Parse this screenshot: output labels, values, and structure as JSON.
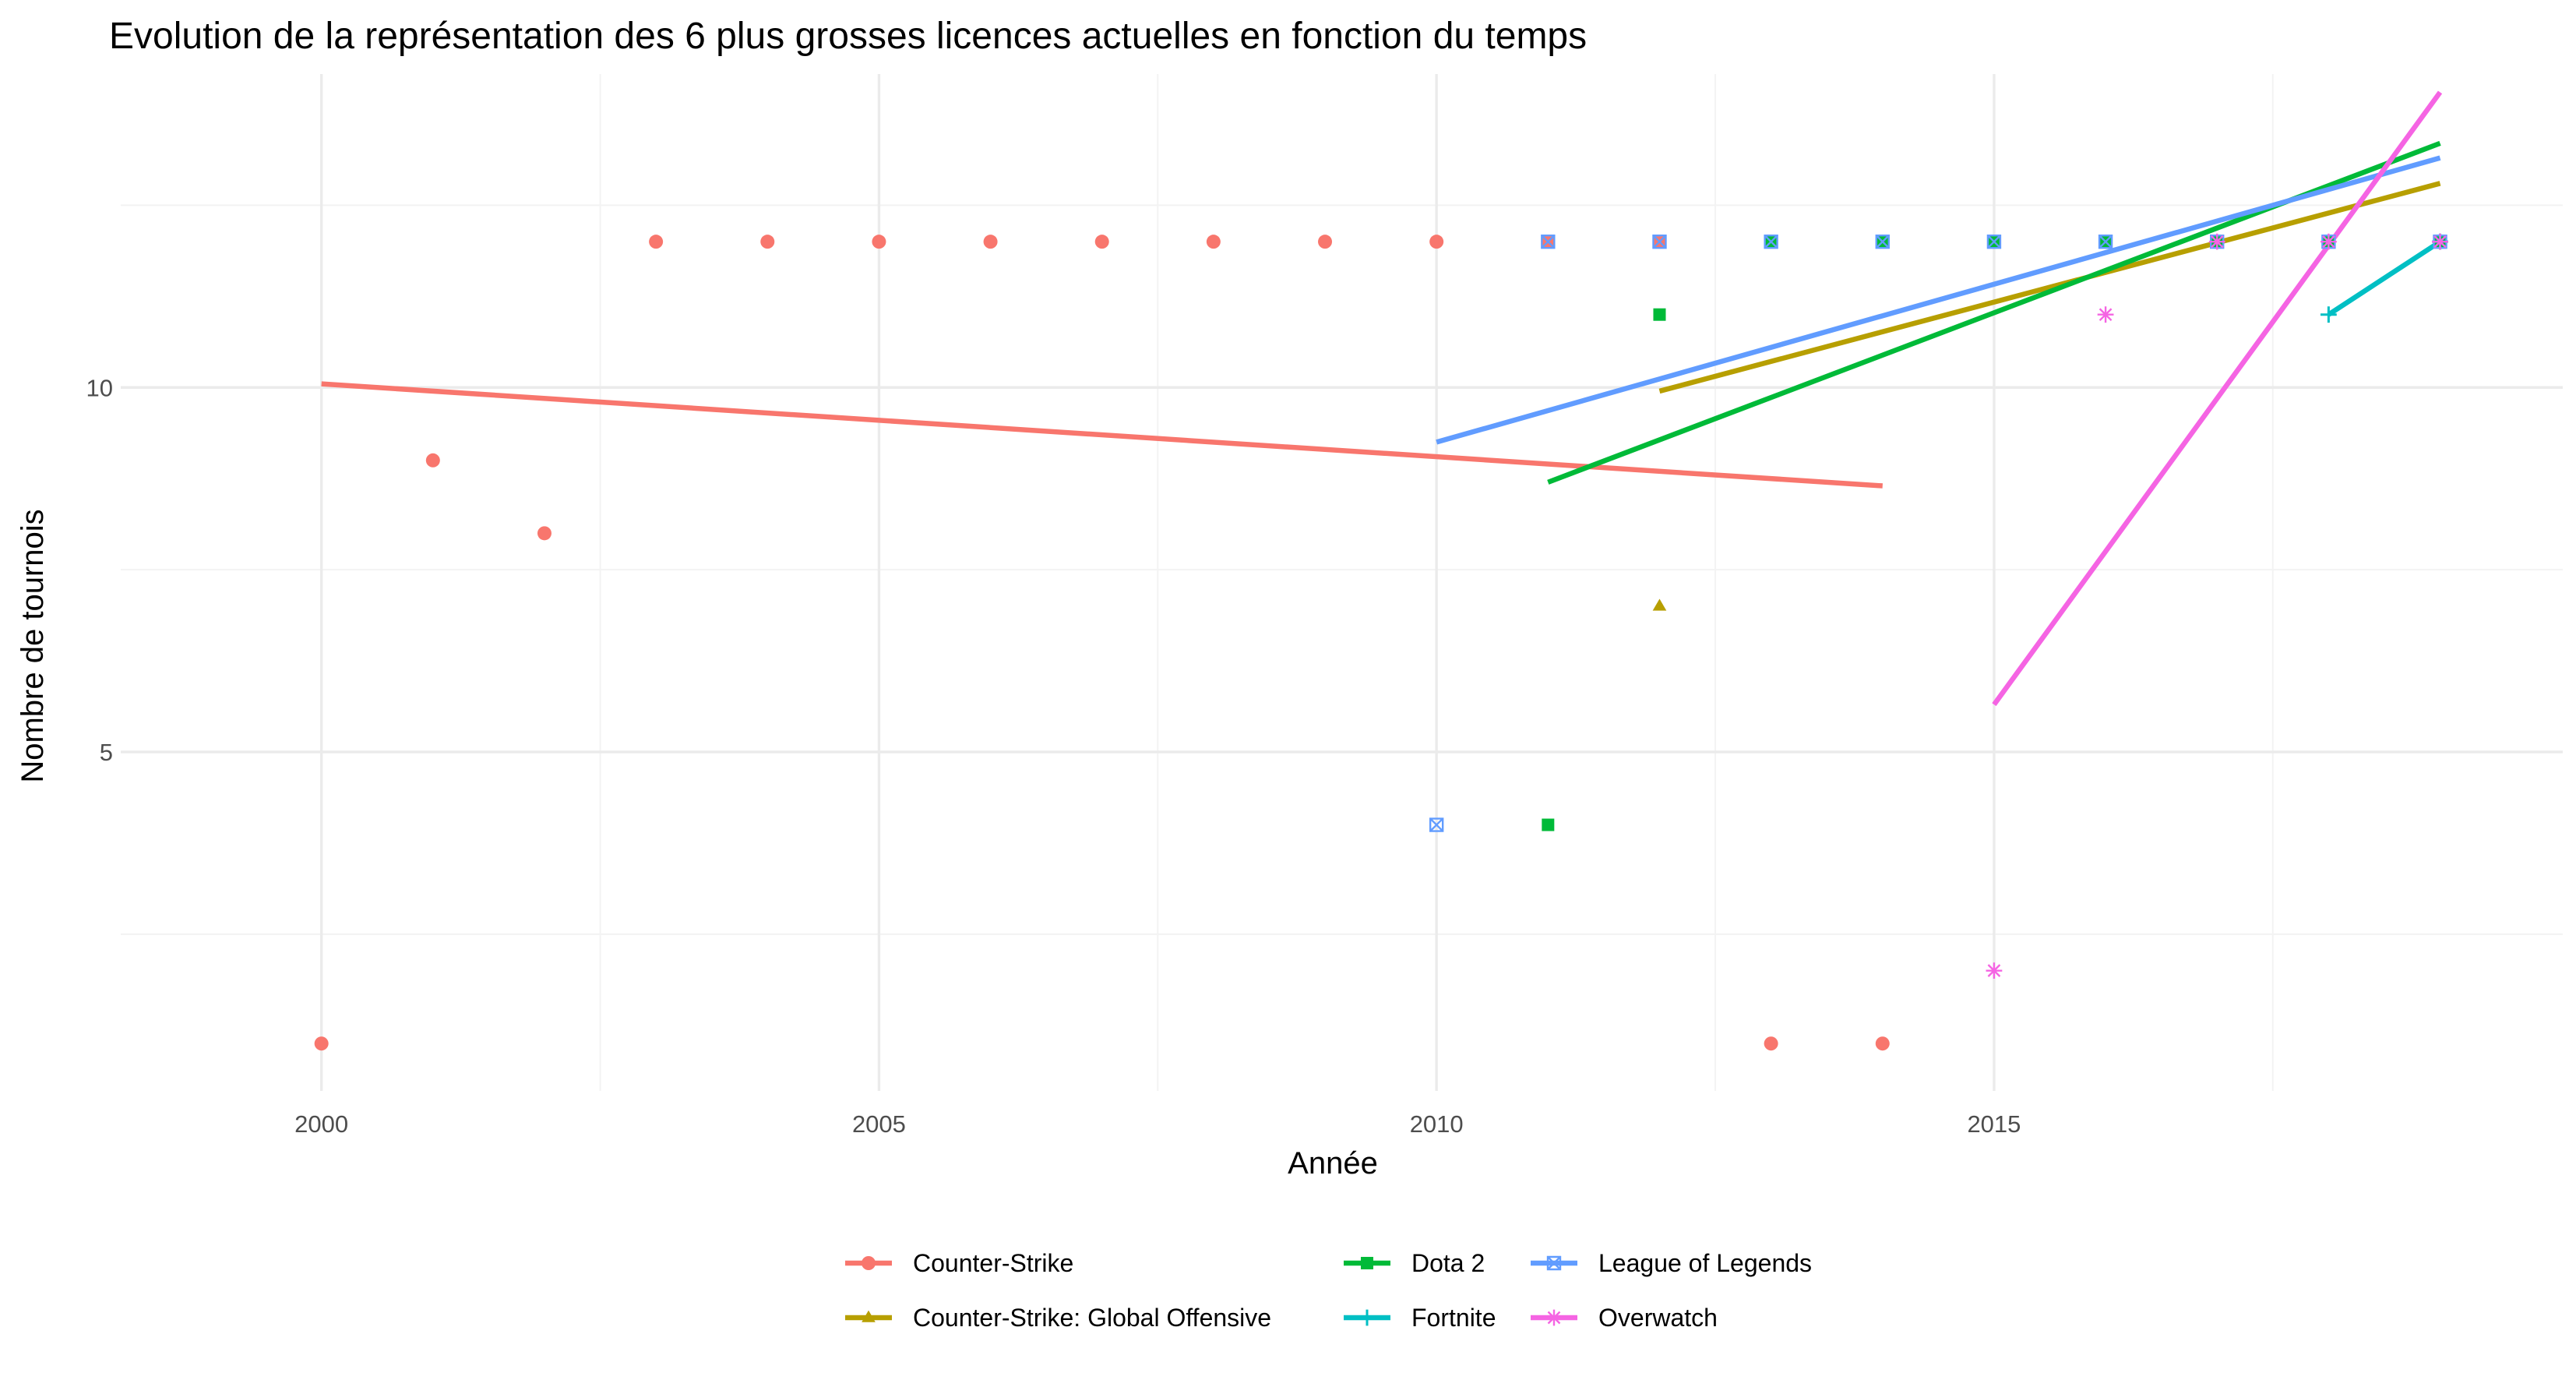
{
  "chart_data": {
    "type": "scatter",
    "title": "Evolution de la représentation des 6 plus grosses licences actuelles en fonction du temps",
    "xlabel": "Année",
    "ylabel": "Nombre de tournois",
    "xlim": [
      1998.2,
      2020.1
    ],
    "ylim": [
      0.35,
      14.3
    ],
    "x_ticks": [
      2000,
      2005,
      2010,
      2015
    ],
    "x_minor_ticks": [
      2002.5,
      2007.5,
      2012.5,
      2017.5
    ],
    "y_ticks": [
      5,
      10
    ],
    "y_minor_ticks": [
      2.5,
      7.5,
      12.5
    ],
    "grid": true,
    "legend_position": "bottom",
    "series": [
      {
        "name": "Counter-Strike",
        "color": "#F8766D",
        "marker": "circle",
        "points": [
          [
            2000,
            1
          ],
          [
            2001,
            9
          ],
          [
            2002,
            8
          ],
          [
            2003,
            12
          ],
          [
            2004,
            12
          ],
          [
            2005,
            12
          ],
          [
            2006,
            12
          ],
          [
            2007,
            12
          ],
          [
            2008,
            12
          ],
          [
            2009,
            12
          ],
          [
            2010,
            12
          ],
          [
            2011,
            12
          ],
          [
            2012,
            12
          ],
          [
            2013,
            1
          ],
          [
            2014,
            1
          ]
        ],
        "trend": [
          [
            2000,
            10.05
          ],
          [
            2014,
            8.65
          ]
        ]
      },
      {
        "name": "Counter-Strike: Global Offensive",
        "color": "#B79F00",
        "marker": "triangle",
        "points": [
          [
            2012,
            7
          ],
          [
            2013,
            12
          ],
          [
            2014,
            12
          ],
          [
            2015,
            12
          ],
          [
            2016,
            12
          ],
          [
            2017,
            12
          ],
          [
            2018,
            12
          ],
          [
            2019,
            12
          ]
        ],
        "trend": [
          [
            2012,
            9.95
          ],
          [
            2019,
            12.8
          ]
        ]
      },
      {
        "name": "Dota 2",
        "color": "#00BA38",
        "marker": "square",
        "points": [
          [
            2011,
            4
          ],
          [
            2012,
            11
          ],
          [
            2013,
            12
          ],
          [
            2014,
            12
          ],
          [
            2015,
            12
          ],
          [
            2016,
            12
          ],
          [
            2017,
            12
          ],
          [
            2018,
            12
          ],
          [
            2019,
            12
          ]
        ],
        "trend": [
          [
            2011,
            8.7
          ],
          [
            2019,
            13.35
          ]
        ]
      },
      {
        "name": "Fortnite",
        "color": "#00BFC4",
        "marker": "plus",
        "points": [
          [
            2018,
            11
          ],
          [
            2019,
            12
          ]
        ],
        "trend": [
          [
            2018,
            11
          ],
          [
            2019,
            12
          ]
        ]
      },
      {
        "name": "League of Legends",
        "color": "#619CFF",
        "marker": "square-x",
        "points": [
          [
            2010,
            4
          ],
          [
            2011,
            12
          ],
          [
            2012,
            12
          ],
          [
            2013,
            12
          ],
          [
            2014,
            12
          ],
          [
            2015,
            12
          ],
          [
            2016,
            12
          ],
          [
            2017,
            12
          ],
          [
            2018,
            12
          ],
          [
            2019,
            12
          ]
        ],
        "trend": [
          [
            2010,
            9.25
          ],
          [
            2019,
            13.15
          ]
        ]
      },
      {
        "name": "Overwatch",
        "color": "#F564E3",
        "marker": "asterisk",
        "points": [
          [
            2015,
            2
          ],
          [
            2016,
            11
          ],
          [
            2017,
            12
          ],
          [
            2018,
            12
          ],
          [
            2019,
            12
          ]
        ],
        "trend": [
          [
            2015,
            5.65
          ],
          [
            2019,
            14.05
          ]
        ]
      }
    ]
  }
}
